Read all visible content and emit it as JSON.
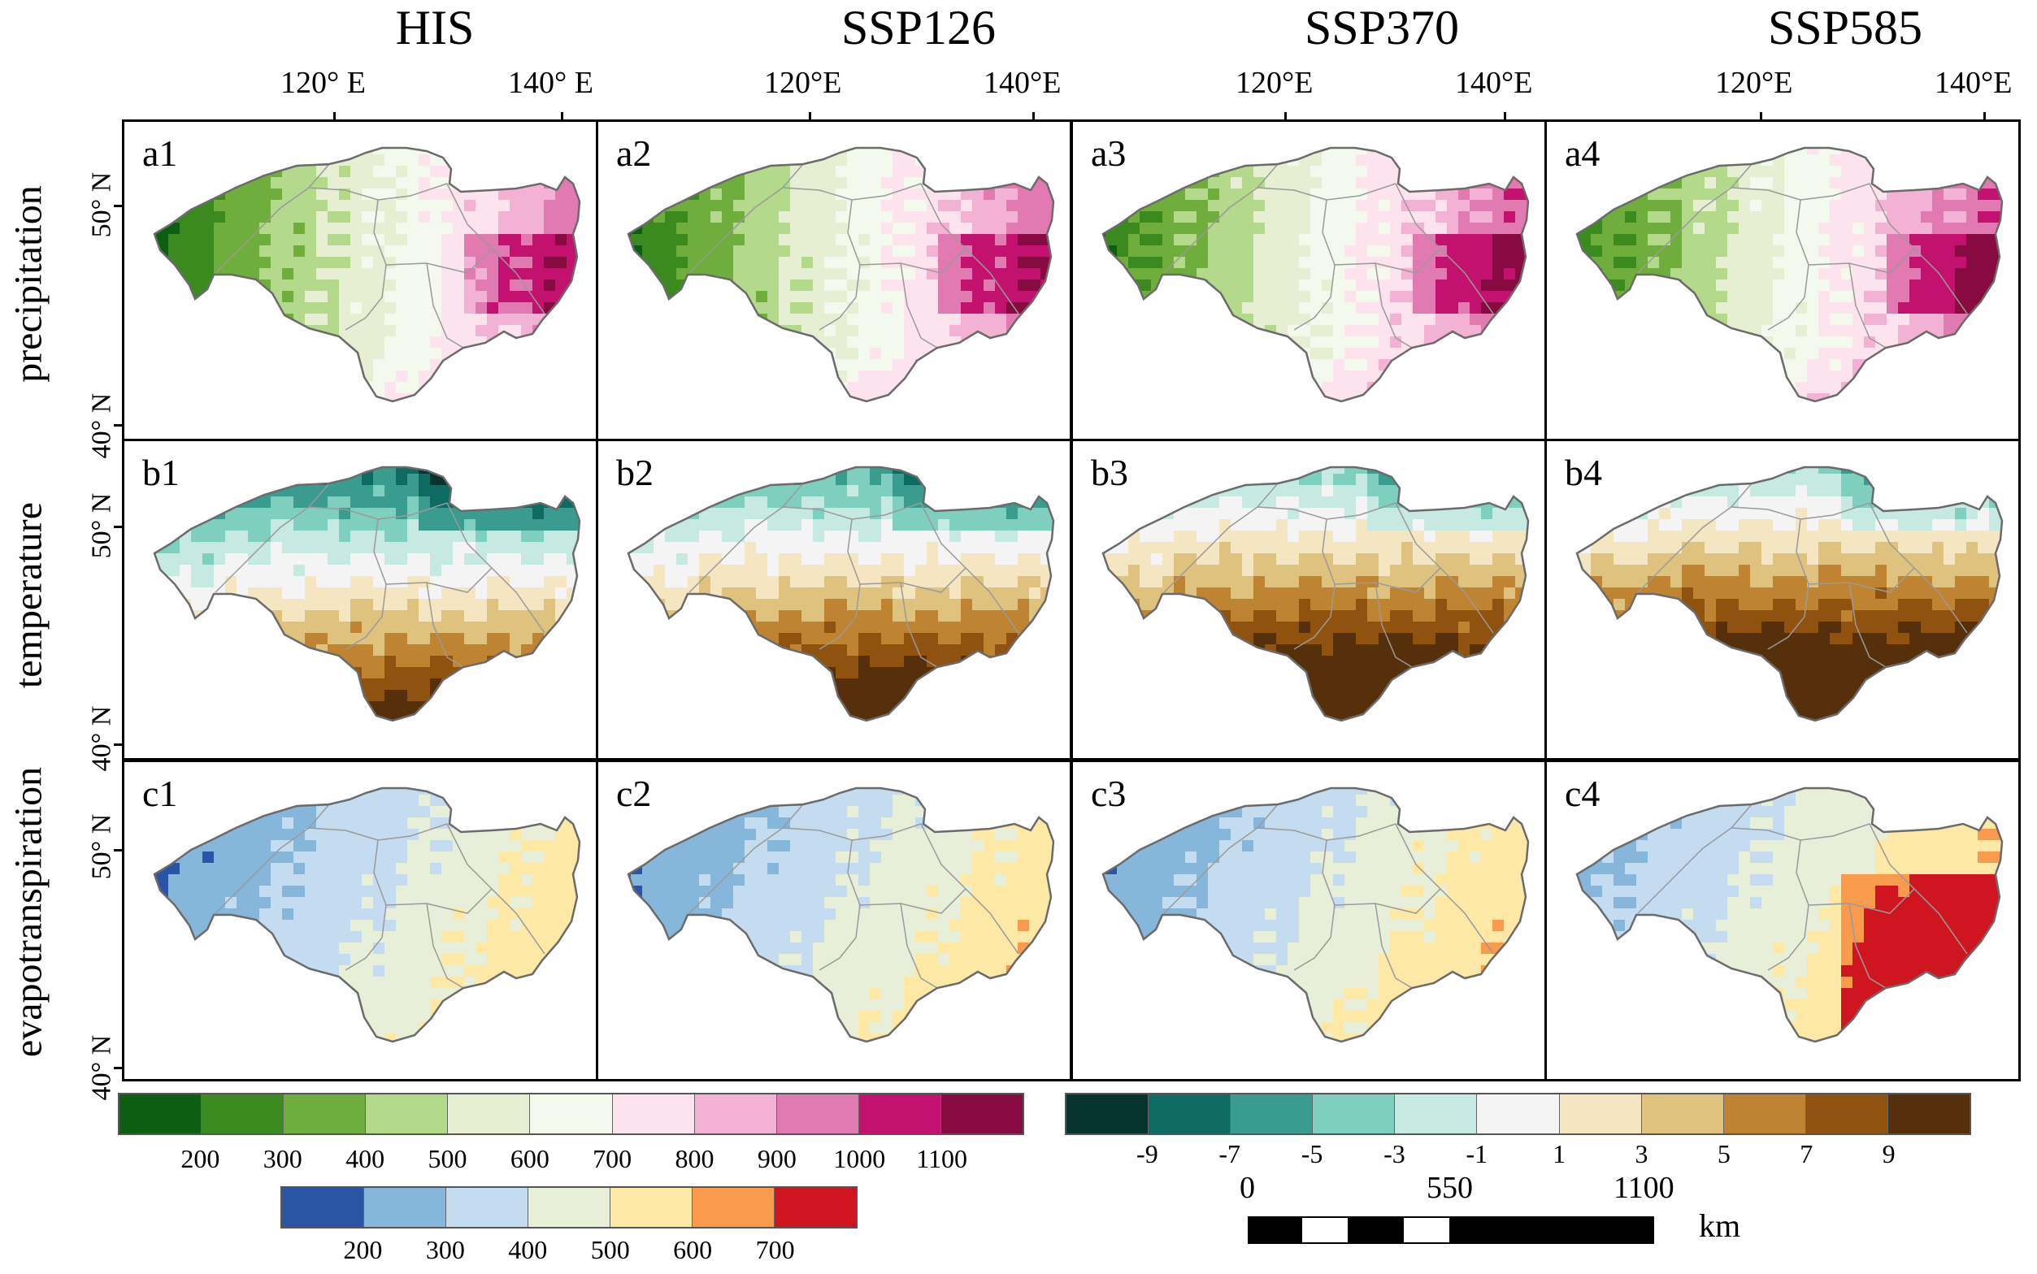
{
  "columns": [
    "HIS",
    "SSP126",
    "SSP370",
    "SSP585"
  ],
  "lon_labels": [
    [
      "120° E",
      "140° E"
    ],
    [
      "120°E",
      "140°E"
    ],
    [
      "120°E",
      "140°E"
    ],
    [
      "120°E",
      "140°E"
    ]
  ],
  "rows": [
    {
      "name": "precipitation",
      "lat_top": "50° N",
      "lat_bottom": "40° N",
      "letter": "a"
    },
    {
      "name": "temperature",
      "lat_top": "50° N",
      "lat_bottom": "40° N",
      "letter": "b"
    },
    {
      "name": "evapotranspiration",
      "lat_top": "50° N",
      "lat_bottom": "40° N",
      "letter": "c"
    }
  ],
  "panels": [
    [
      "a1",
      "a2",
      "a3",
      "a4"
    ],
    [
      "b1",
      "b2",
      "b3",
      "b4"
    ],
    [
      "c1",
      "c2",
      "c3",
      "c4"
    ]
  ],
  "variable_fields": {
    "precipitation": {
      "levels": [
        0.3,
        0.4,
        0.46,
        0.5
      ],
      "pattern": "precip"
    },
    "temperature": {
      "levels": [
        0.3,
        0.45,
        0.6,
        0.65
      ],
      "pattern": "temp"
    },
    "evapotranspiration": {
      "levels": [
        0.35,
        0.42,
        0.45,
        0.62
      ],
      "pattern": "evap"
    }
  },
  "legends": {
    "precipitation": {
      "colors": [
        "#0b5e12",
        "#3a8a20",
        "#6fae3c",
        "#b3d98a",
        "#e6efd2",
        "#f3f9ec",
        "#fce3ee",
        "#f3b1d3",
        "#e07ab0",
        "#c2116e",
        "#870a41"
      ],
      "ticks": [
        "200",
        "300",
        "400",
        "500",
        "600",
        "700",
        "800",
        "900",
        "1000",
        "1100"
      ]
    },
    "temperature": {
      "colors": [
        "#07352e",
        "#0d6b61",
        "#3a9b8f",
        "#7fcfbf",
        "#c6eae2",
        "#f4f4f4",
        "#f5e6c2",
        "#dfc27e",
        "#bf8431",
        "#8f520f",
        "#55300a"
      ],
      "ticks": [
        "-9",
        "-7",
        "-5",
        "-3",
        "-1",
        "1",
        "3",
        "5",
        "7",
        "9"
      ]
    },
    "evapotranspiration": {
      "colors": [
        "#2a55a4",
        "#86b6da",
        "#c4dcef",
        "#e8efd9",
        "#fde8a6",
        "#f99a4c",
        "#cf1520"
      ],
      "ticks": [
        "200",
        "300",
        "400",
        "500",
        "600",
        "700"
      ]
    }
  },
  "scale_bar": {
    "labels": [
      "0",
      "550",
      "1100"
    ],
    "unit": "km"
  }
}
